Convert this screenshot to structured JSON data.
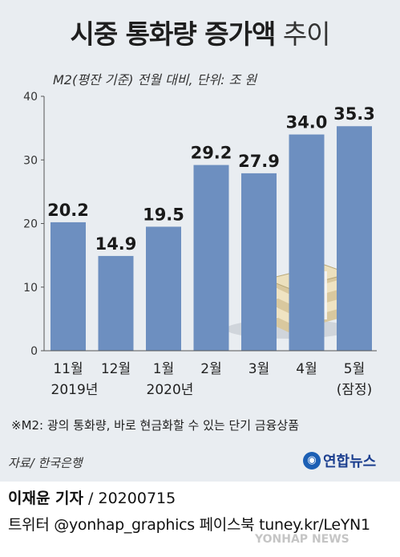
{
  "title_bold": "시중 통화량 증가액",
  "title_light": "추이",
  "subtitle": "M2(평잔 기준) 전월 대비, 단위: 조 원",
  "chart_data": {
    "type": "bar",
    "categories": [
      [
        "11월",
        "2019년"
      ],
      [
        "12월",
        ""
      ],
      [
        "1월",
        "2020년"
      ],
      [
        "2월",
        ""
      ],
      [
        "3월",
        ""
      ],
      [
        "4월",
        ""
      ],
      [
        "5월",
        "(잠정)"
      ]
    ],
    "values": [
      20.2,
      14.9,
      19.5,
      29.2,
      27.9,
      34.0,
      35.3
    ],
    "value_labels": [
      "20.2",
      "14.9",
      "19.5",
      "29.2",
      "27.9",
      "34.0",
      "35.3"
    ],
    "y_ticks": [
      "0",
      "10",
      "20",
      "30",
      "40"
    ],
    "ylim": [
      0,
      40
    ],
    "grid": false,
    "colors": {
      "bar": "#6d8fc0",
      "background": "#e9edf1"
    }
  },
  "footnote": "※M2: 광의 통화량, 바로 현금화할 수 있는 단기 금융상품",
  "source": "자료/ 한국은행",
  "logo_text": "연합뉴스",
  "reporter_name": "이재윤 기자",
  "reporter_date": " / 20200715",
  "social": "트위터 @yonhap_graphics  페이스북 tuney.kr/LeYN1",
  "watermark": "YONHAP NEWS"
}
